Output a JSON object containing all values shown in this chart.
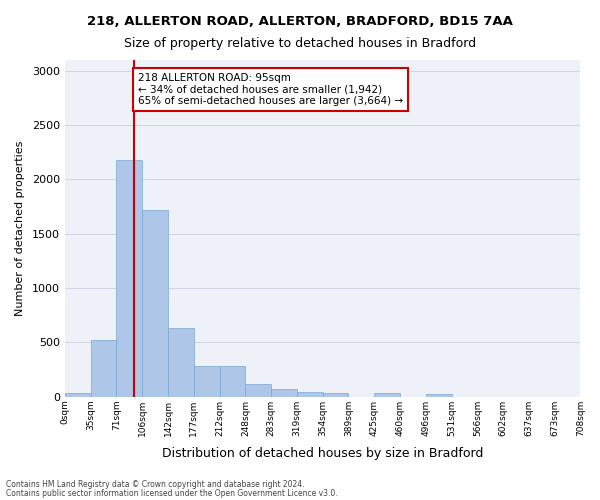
{
  "title1": "218, ALLERTON ROAD, ALLERTON, BRADFORD, BD15 7AA",
  "title2": "Size of property relative to detached houses in Bradford",
  "xlabel": "Distribution of detached houses by size in Bradford",
  "ylabel": "Number of detached properties",
  "footer1": "Contains HM Land Registry data © Crown copyright and database right 2024.",
  "footer2": "Contains public sector information licensed under the Open Government Licence v3.0.",
  "bin_edges": [
    0,
    35,
    71,
    106,
    142,
    177,
    212,
    248,
    283,
    319,
    354,
    389,
    425,
    460,
    496,
    531,
    566,
    602,
    637,
    673,
    708
  ],
  "bin_labels": [
    "0sqm",
    "35sqm",
    "71sqm",
    "106sqm",
    "142sqm",
    "177sqm",
    "212sqm",
    "248sqm",
    "283sqm",
    "319sqm",
    "354sqm",
    "389sqm",
    "425sqm",
    "460sqm",
    "496sqm",
    "531sqm",
    "566sqm",
    "602sqm",
    "637sqm",
    "673sqm",
    "708sqm"
  ],
  "bar_values": [
    30,
    520,
    2175,
    1720,
    635,
    280,
    280,
    115,
    70,
    40,
    30,
    0,
    30,
    0,
    25,
    0,
    0,
    0,
    0,
    0
  ],
  "bar_color": "#aec6e8",
  "bar_edge_color": "#7aa8d2",
  "grid_color": "#d0d8e8",
  "background_color": "#eef2f8",
  "annotation_text": "218 ALLERTON ROAD: 95sqm\n← 34% of detached houses are smaller (1,942)\n65% of semi-detached houses are larger (3,664) →",
  "annotation_box_color": "#ffffff",
  "annotation_box_edge_color": "#cc0000",
  "red_line_color": "#cc0000",
  "red_line_value": 95,
  "ylim": [
    0,
    3100
  ],
  "yticks": [
    0,
    500,
    1000,
    1500,
    2000,
    2500,
    3000
  ]
}
